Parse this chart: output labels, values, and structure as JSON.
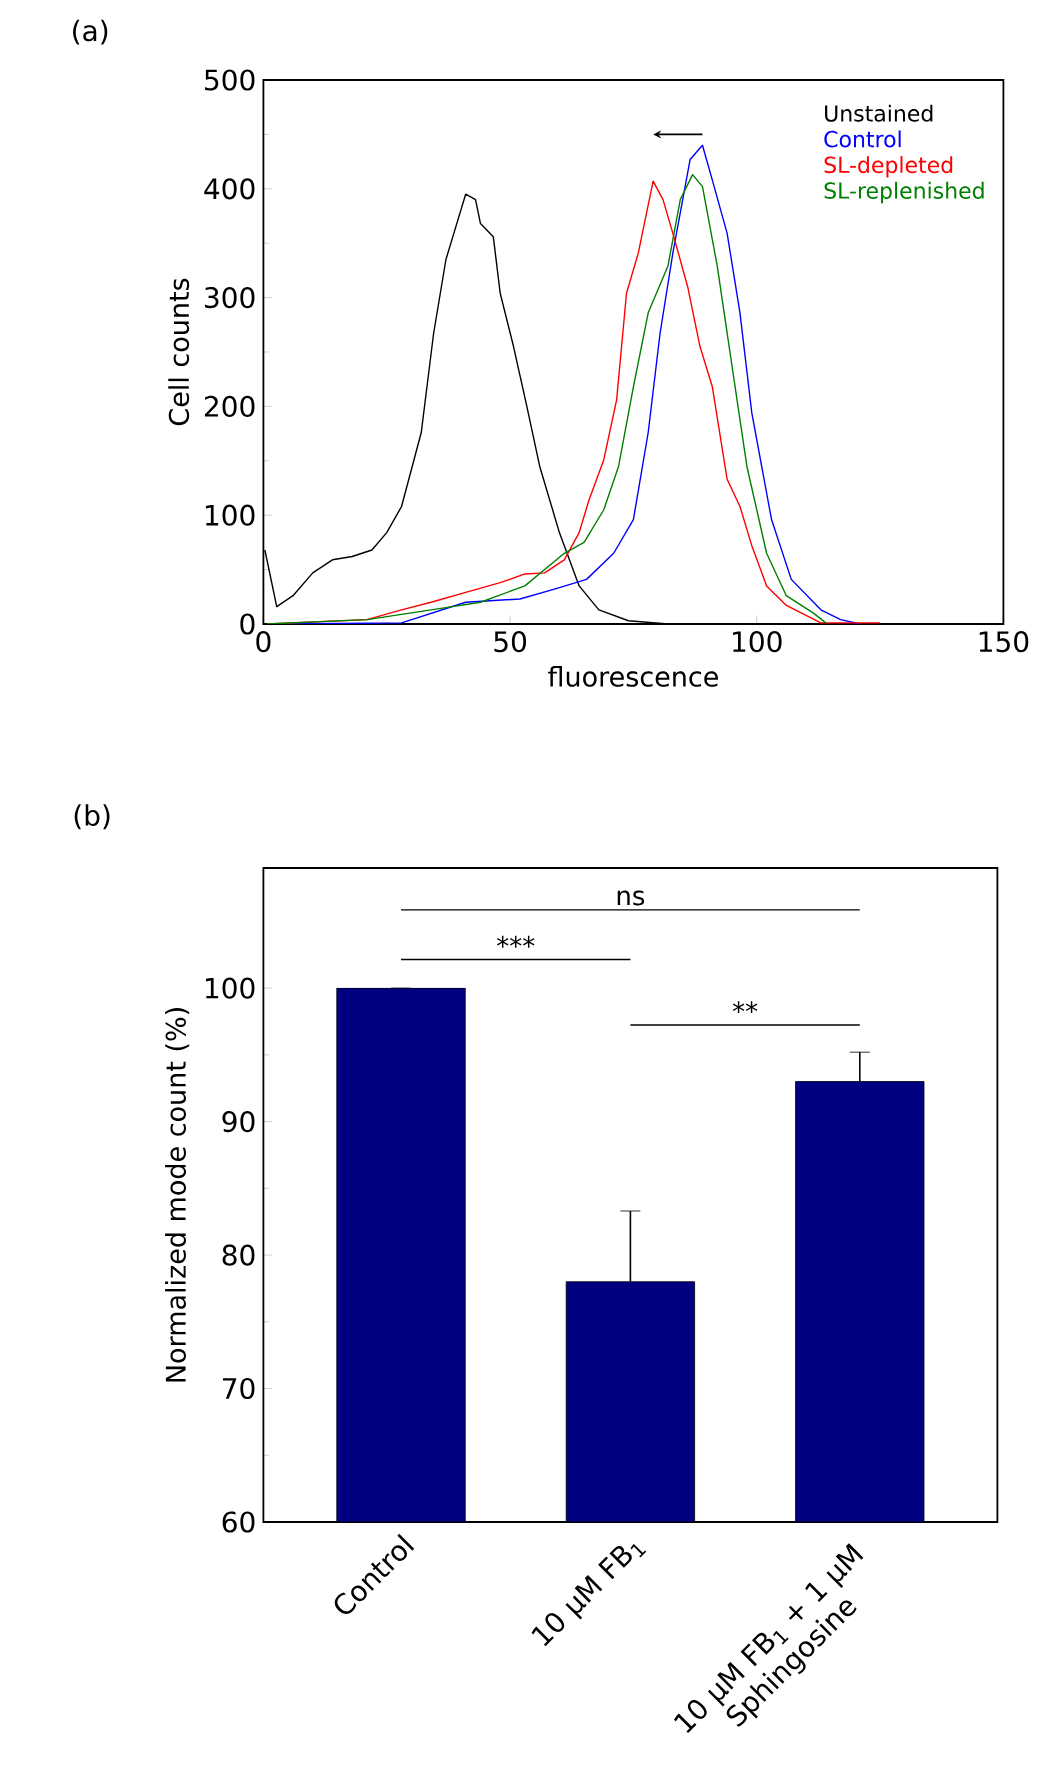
{
  "chart_data": [
    {
      "type": "line",
      "title": "(a)",
      "xlabel": "fluorescence",
      "ylabel": "Cell counts",
      "xlim": [
        0,
        150
      ],
      "ylim": [
        0,
        500
      ],
      "xticks": [
        0,
        50,
        100,
        150
      ],
      "yticks": [
        0,
        100,
        200,
        300,
        400,
        500
      ],
      "legend": "top right",
      "series": [
        {
          "name": "Unstained",
          "color": "#000000",
          "x": [
            0.3,
            2.7,
            6,
            10,
            14,
            18,
            22,
            25,
            28,
            32,
            34.5,
            37,
            39,
            41,
            43,
            44,
            46.6,
            48,
            50.7,
            53.4,
            56,
            60,
            64,
            68,
            74,
            82
          ],
          "values": [
            68,
            16,
            26,
            47,
            59,
            62,
            68,
            84,
            108,
            176,
            267,
            335,
            365,
            395,
            390,
            368,
            356,
            304,
            255,
            200,
            145,
            84,
            35,
            13,
            3,
            0
          ]
        },
        {
          "name": "Control",
          "color": "#0000ff",
          "x": [
            0.7,
            28,
            41,
            52,
            59,
            65.5,
            71,
            75,
            78,
            80.4,
            83,
            86.5,
            89,
            91,
            94,
            96.6,
            99,
            103,
            107,
            113,
            117,
            121
          ],
          "values": [
            0,
            1,
            20,
            23,
            32,
            41,
            65,
            96,
            176,
            267,
            341,
            427,
            440,
            408,
            359,
            286,
            194,
            96,
            41,
            13,
            4,
            0
          ]
        },
        {
          "name": "SL-depleted",
          "color": "#ff0000",
          "x": [
            0.7,
            21,
            28,
            34,
            41,
            48,
            53,
            57,
            61,
            64,
            66,
            69,
            71.6,
            73.6,
            76,
            79,
            81,
            83,
            86,
            88.5,
            91,
            94,
            96.6,
            99,
            102,
            106,
            113,
            125
          ],
          "values": [
            0,
            4,
            13,
            20,
            29,
            38,
            46,
            47,
            59,
            84,
            114,
            151,
            206,
            304,
            341,
            407,
            390,
            359,
            310,
            255,
            218,
            133,
            108,
            72,
            35,
            17,
            1,
            1
          ]
        },
        {
          "name": "SL-replenished",
          "color": "#008000",
          "x": [
            0.7,
            21,
            34,
            44,
            53,
            61,
            65,
            69,
            72,
            75,
            78,
            82,
            84.5,
            87,
            89,
            92,
            94.6,
            98,
            102,
            106,
            111.5,
            114
          ],
          "values": [
            0,
            4,
            13,
            20,
            35,
            65,
            75,
            105,
            145,
            218,
            286,
            329,
            390,
            413,
            402,
            329,
            249,
            145,
            65,
            26,
            10,
            1
          ]
        }
      ]
    },
    {
      "type": "bar",
      "title": "(b)",
      "ylabel": "Normalized mode count (%)",
      "categories": [
        "Control",
        "10 µM FB$_{1}$",
        "10 µM FB$_{1}$ + 1 µM Sphingosine"
      ],
      "values": [
        100,
        78,
        93
      ],
      "errors": [
        null,
        [
          78,
          83.3
        ],
        [
          93,
          95.2
        ]
      ],
      "color": "#000080",
      "ylim": [
        60,
        109
      ],
      "yticks": [
        60,
        70,
        80,
        90,
        100
      ],
      "annotations": [
        "ns",
        "***",
        "**"
      ]
    }
  ]
}
